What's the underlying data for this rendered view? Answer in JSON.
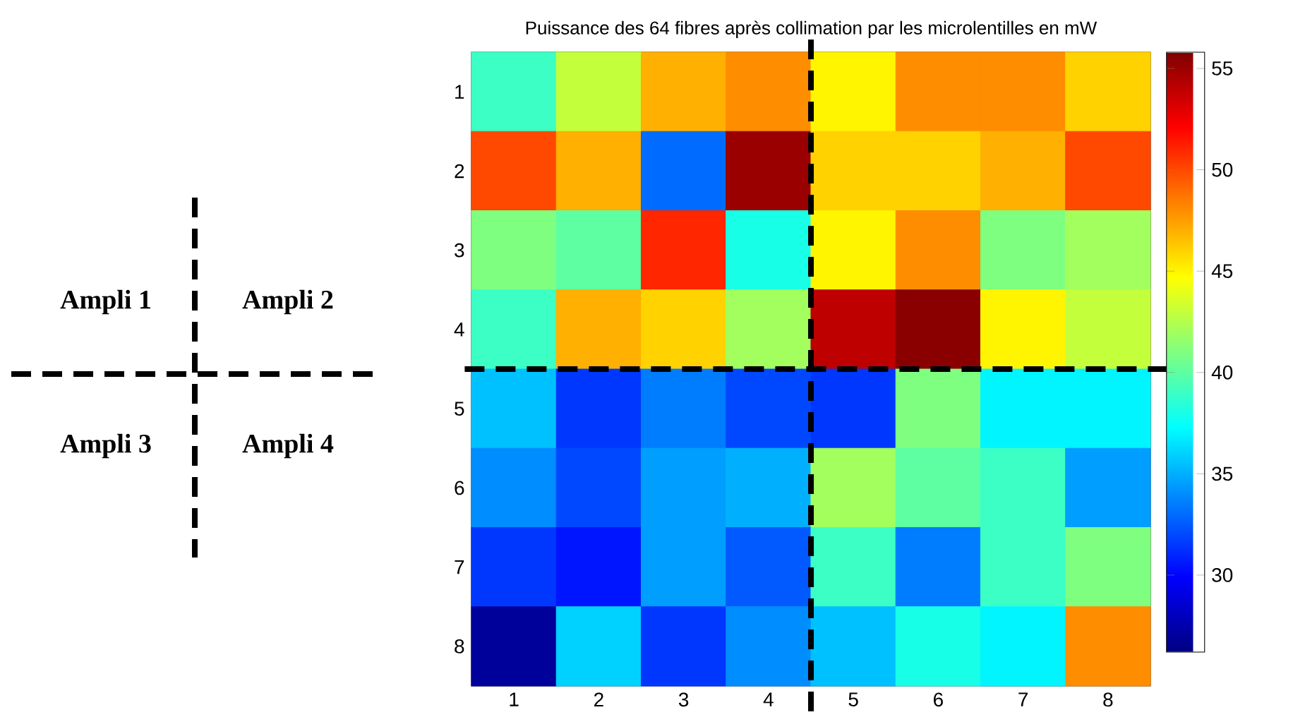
{
  "chart_data": {
    "type": "heatmap",
    "title": "Puissance des 64 fibres après collimation par les microlentilles en mW",
    "categories": [
      "1",
      "2",
      "3",
      "4",
      "5",
      "6",
      "7",
      "8"
    ],
    "y_categories": [
      "1",
      "2",
      "3",
      "4",
      "5",
      "6",
      "7",
      "8"
    ],
    "cells": [
      [
        39,
        43,
        47,
        48,
        45,
        48,
        48,
        46
      ],
      [
        50,
        47,
        33,
        55,
        46,
        46,
        47,
        50
      ],
      [
        41,
        40,
        51,
        38,
        45,
        48,
        41,
        42
      ],
      [
        39,
        47,
        46,
        42,
        54,
        55.5,
        45,
        43
      ],
      [
        35.5,
        31.5,
        33.5,
        32,
        31.5,
        41,
        37,
        37
      ],
      [
        34,
        32,
        34.5,
        35,
        42,
        40,
        39,
        34.5
      ],
      [
        31.5,
        30.5,
        34.5,
        32.5,
        39,
        33.5,
        39,
        41
      ],
      [
        27,
        36,
        31.5,
        34,
        35.5,
        38,
        37,
        48
      ]
    ],
    "clim": [
      26.2,
      55.8
    ],
    "cticks": [
      30,
      35,
      40,
      45,
      50,
      55
    ],
    "annotations": [
      "Ampli 1",
      "Ampli 2",
      "Ampli 3",
      "Ampli 4"
    ]
  }
}
